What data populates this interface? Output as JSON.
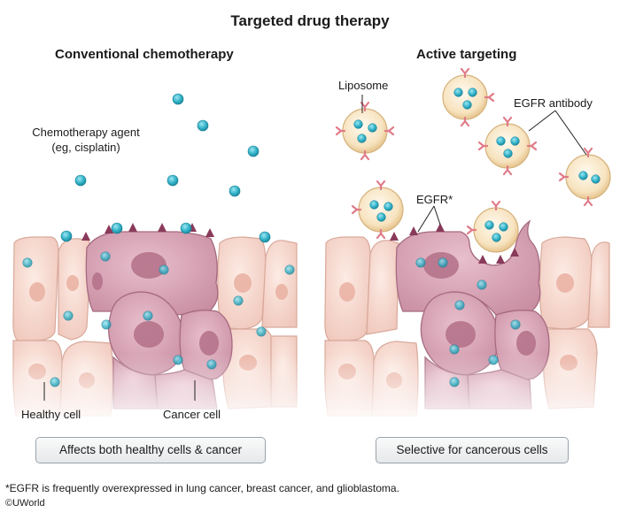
{
  "title": "Targeted drug therapy",
  "panels": {
    "left": {
      "heading": "Conventional chemotherapy",
      "agent_label_line1": "Chemotherapy agent",
      "agent_label_line2": "(eg, cisplatin)",
      "healthy_label": "Healthy cell",
      "cancer_label": "Cancer cell",
      "summary": "Affects both healthy cells & cancer"
    },
    "right": {
      "heading": "Active targeting",
      "liposome_label": "Liposome",
      "antibody_label": "EGFR antibody",
      "egfr_label": "EGFR*",
      "summary": "Selective for cancerous cells"
    }
  },
  "footnote": "*EGFR is frequently overexpressed in lung cancer, breast cancer, and glioblastoma.",
  "credit": "©UWorld",
  "colors": {
    "drug": "#35b4c9",
    "healthy_cell": "#f6d6cc",
    "cancer_cell": "#d9a3b4",
    "receptor": "#8a3a5a",
    "antibody": "#e07a88",
    "liposome": "#f4dfb7"
  }
}
